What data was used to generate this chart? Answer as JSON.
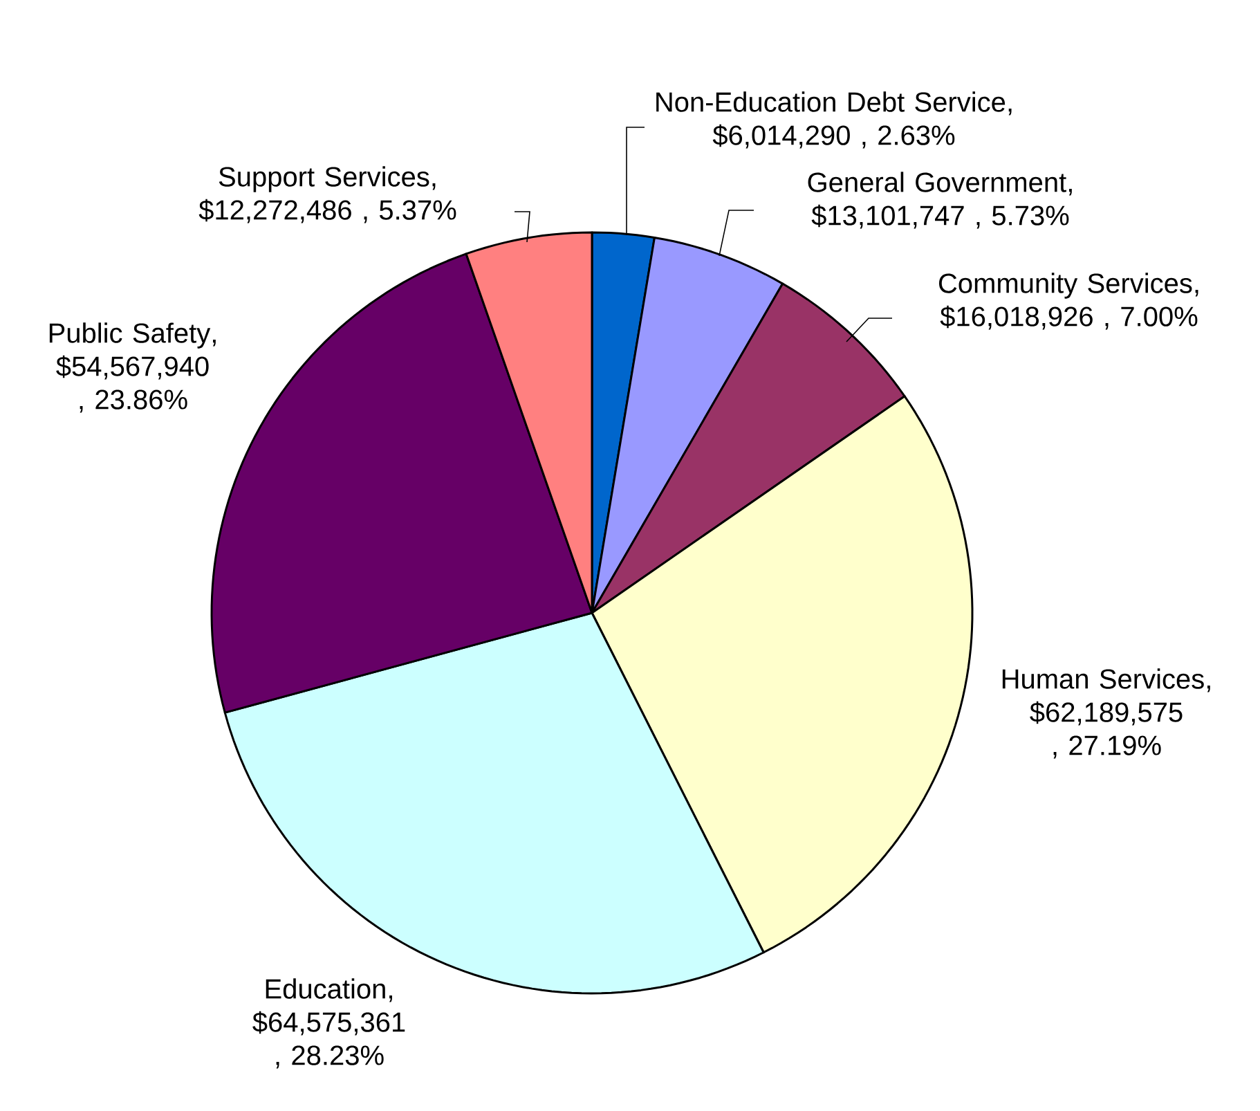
{
  "chart_data": {
    "type": "pie",
    "categories": [
      "Non-Education Debt Service",
      "General Government",
      "Community Services",
      "Human Services",
      "Education",
      "Public Safety",
      "Support Services"
    ],
    "values": [
      6014290,
      13101747,
      16018926,
      62189575,
      64575361,
      54567940,
      12272486
    ],
    "value_labels": [
      ", $6,014,290 , 2.63%",
      ", $13,101,747 , 5.73%",
      ", $16,018,926 , 7.00%",
      ", $62,189,575 , 27.19%",
      ", $64,575,361 , 28.23%",
      ", $54,567,940 , 23.86%",
      ", $12,272,486 , 5.37%"
    ],
    "colors": [
      "#0066cc",
      "#9999ff",
      "#993366",
      "#ffffcc",
      "#ccffff",
      "#660066",
      "#ff8080"
    ]
  }
}
